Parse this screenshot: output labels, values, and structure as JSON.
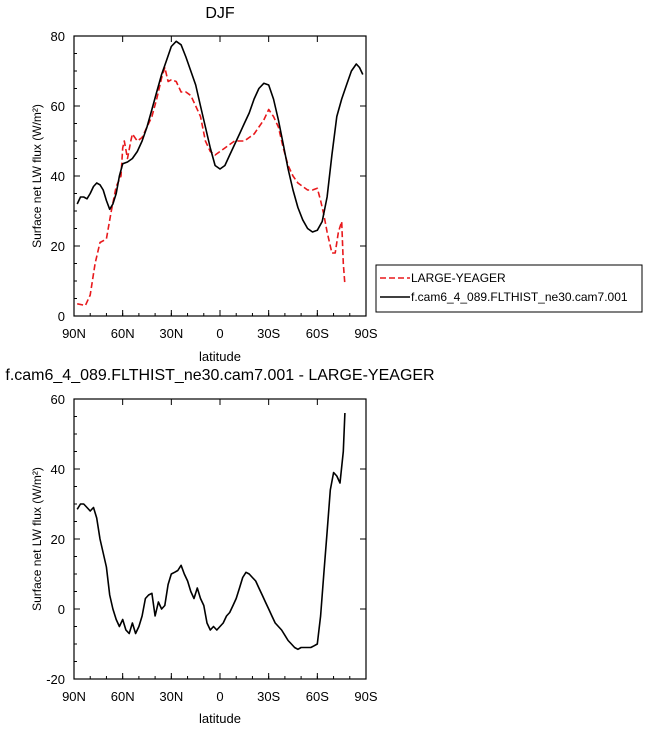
{
  "chart_data": [
    {
      "type": "line",
      "title": "DJF",
      "xlabel": "latitude",
      "ylabel": "Surface net LW flux (W/m²)",
      "xlim": [
        90,
        -90
      ],
      "ylim": [
        0,
        80
      ],
      "x_ticks": [
        90,
        60,
        30,
        0,
        -30,
        -60,
        -90
      ],
      "x_tick_labels": [
        "90N",
        "60N",
        "30N",
        "0",
        "30S",
        "60S",
        "90S"
      ],
      "y_ticks": [
        0,
        20,
        40,
        60,
        80
      ],
      "y_tick_labels": [
        "0",
        "20",
        "40",
        "60",
        "80"
      ],
      "legend_position": "right",
      "series": [
        {
          "name": "LARGE-YEAGER",
          "color": "#e8191c",
          "style": "dashed",
          "x": [
            88,
            83,
            80,
            77,
            74,
            70,
            67,
            64,
            61,
            60,
            59,
            57,
            55,
            54,
            51,
            48,
            45,
            42,
            39,
            36,
            34,
            32,
            30,
            27,
            24,
            21,
            18,
            15,
            12,
            9,
            6,
            3,
            0,
            -3,
            -6,
            -9,
            -12,
            -15,
            -18,
            -21,
            -24,
            -27,
            -30,
            -33,
            -36,
            -39,
            -42,
            -45,
            -48,
            -51,
            -54,
            -57,
            -60,
            -62,
            -64,
            -66,
            -69,
            -71,
            -73,
            -75,
            -76,
            -77
          ],
          "values": [
            3.5,
            3,
            6,
            15,
            21,
            22,
            30,
            37,
            40,
            48,
            50,
            45,
            50,
            52,
            50,
            51,
            54,
            57,
            62,
            68,
            71,
            67,
            67.5,
            67,
            64,
            64,
            63,
            60,
            57,
            50,
            47,
            46,
            47,
            48,
            49,
            50,
            50,
            50,
            51,
            52,
            54,
            56,
            59,
            57,
            54,
            48,
            43,
            40,
            38,
            37,
            36,
            36,
            36.5,
            33,
            29,
            24,
            18,
            18,
            24,
            27,
            15,
            9
          ]
        },
        {
          "name": "f.cam6_4_089.FLTHIST_ne30.cam7.001",
          "color": "#000000",
          "style": "solid",
          "x": [
            88,
            86,
            84,
            82,
            80,
            78,
            76,
            74,
            72,
            70,
            68,
            66,
            64,
            62,
            60,
            57,
            54,
            51,
            48,
            45,
            42,
            39,
            36,
            33,
            30,
            27,
            24,
            21,
            18,
            15,
            12,
            9,
            6,
            3,
            0,
            -3,
            -6,
            -9,
            -12,
            -15,
            -18,
            -21,
            -24,
            -27,
            -30,
            -33,
            -36,
            -39,
            -42,
            -45,
            -48,
            -51,
            -54,
            -57,
            -60,
            -63,
            -66,
            -69,
            -72,
            -75,
            -78,
            -81,
            -84,
            -86,
            -88
          ],
          "values": [
            32,
            34,
            34,
            33.5,
            35,
            37,
            38,
            37.5,
            36,
            33,
            30.5,
            32,
            35,
            40,
            43.5,
            44,
            45,
            47,
            50,
            54,
            59,
            64,
            69,
            73,
            77,
            78.5,
            77.5,
            74,
            70,
            66,
            60,
            54,
            48,
            43,
            42,
            43,
            46,
            49,
            52,
            55,
            58,
            62,
            65,
            66.5,
            66,
            62,
            56,
            49,
            42,
            36,
            31,
            27.5,
            25,
            24,
            24.5,
            27,
            34,
            46,
            57,
            62,
            66,
            70,
            72,
            71,
            69
          ]
        }
      ]
    },
    {
      "type": "line",
      "title": "f.cam6_4_089.FLTHIST_ne30.cam7.001 - LARGE-YEAGER",
      "xlabel": "latitude",
      "ylabel": "Surface net LW flux (W/m²)",
      "xlim": [
        90,
        -90
      ],
      "ylim": [
        -20,
        60
      ],
      "x_ticks": [
        90,
        60,
        30,
        0,
        -30,
        -60,
        -90
      ],
      "x_tick_labels": [
        "90N",
        "60N",
        "30N",
        "0",
        "30S",
        "60S",
        "90S"
      ],
      "y_ticks": [
        -20,
        0,
        20,
        40,
        60
      ],
      "y_tick_labels": [
        "-20",
        "0",
        "20",
        "40",
        "60"
      ],
      "series": [
        {
          "color": "#000000",
          "style": "solid",
          "x": [
            88,
            86,
            84,
            82,
            80,
            78,
            76,
            74,
            72,
            70,
            68,
            66,
            64,
            62,
            60,
            58,
            56,
            54,
            52,
            50,
            48,
            46,
            44,
            42,
            40,
            38,
            36,
            34,
            32,
            30,
            28,
            26,
            24,
            22,
            20,
            18,
            16,
            14,
            12,
            10,
            8,
            6,
            4,
            2,
            0,
            -2,
            -4,
            -6,
            -8,
            -10,
            -12,
            -14,
            -16,
            -18,
            -20,
            -22,
            -24,
            -26,
            -28,
            -30,
            -32,
            -34,
            -36,
            -38,
            -40,
            -42,
            -44,
            -46,
            -48,
            -50,
            -52,
            -54,
            -56,
            -58,
            -60,
            -62,
            -64,
            -66,
            -68,
            -70,
            -72,
            -74,
            -76,
            -77
          ],
          "values": [
            28.5,
            30,
            30,
            29,
            28,
            29,
            26,
            20,
            16,
            12,
            4,
            0,
            -3,
            -5,
            -3,
            -6,
            -7,
            -4,
            -7,
            -5,
            -2,
            3,
            4,
            4.5,
            -2,
            2,
            0,
            1,
            7,
            10,
            10.5,
            11,
            12.5,
            10,
            8,
            5,
            3,
            6,
            3,
            1,
            -4,
            -6,
            -5,
            -6,
            -5,
            -4,
            -2,
            -1,
            1,
            3,
            6,
            9,
            10.5,
            10,
            9,
            8,
            6,
            4,
            2,
            0,
            -2,
            -4,
            -5,
            -6,
            -7.5,
            -9,
            -10,
            -11,
            -11.5,
            -11,
            -11,
            -11,
            -11,
            -10.5,
            -10,
            -2,
            10,
            22,
            34,
            39,
            38,
            36,
            45,
            56
          ]
        }
      ]
    }
  ]
}
